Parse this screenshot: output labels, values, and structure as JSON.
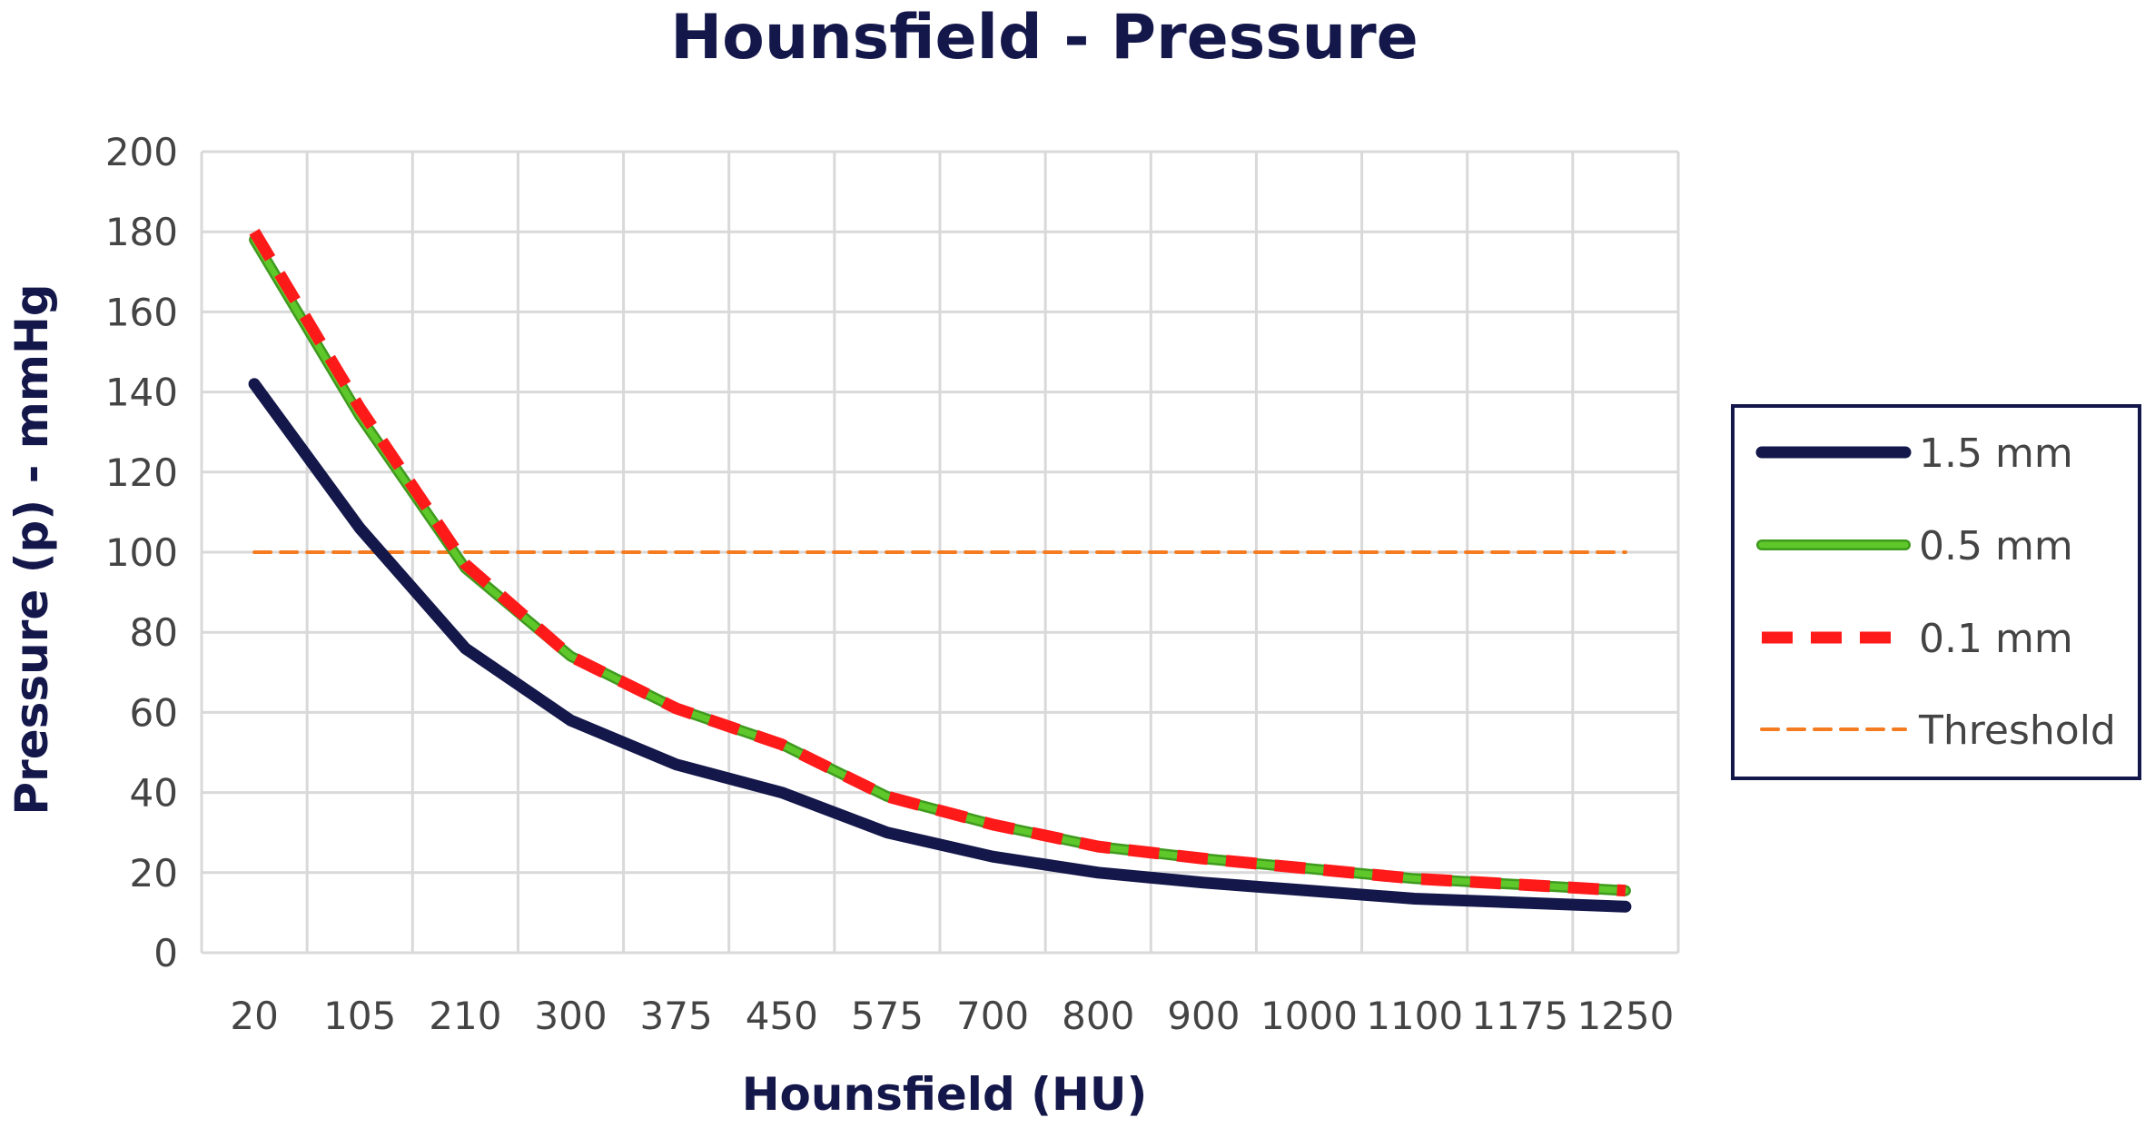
{
  "chart_data": {
    "type": "line",
    "title": "Hounsfield - Pressure",
    "xlabel": "Hounsfield (HU)",
    "ylabel": "Pressure (p) - mmHg",
    "categories": [
      "20",
      "105",
      "210",
      "300",
      "375",
      "450",
      "575",
      "700",
      "800",
      "900",
      "1000",
      "1100",
      "1175",
      "1250"
    ],
    "ylim": [
      0,
      200
    ],
    "yticks": [
      "0",
      "20",
      "40",
      "60",
      "80",
      "100",
      "120",
      "140",
      "160",
      "180",
      "200"
    ],
    "grid": true,
    "legend_position": "right",
    "series": [
      {
        "name": "1.5 mm",
        "color": "#14174a",
        "style": "solid-thick",
        "values": [
          142,
          106,
          76,
          58,
          47,
          40,
          30,
          24,
          20,
          17.5,
          15.5,
          13.5,
          12.5,
          11.5
        ]
      },
      {
        "name": "0.5 mm",
        "color": "#5ec72a",
        "style": "solid-outlined",
        "values": [
          178,
          134,
          96,
          74,
          61,
          52,
          39,
          32,
          26.5,
          23.5,
          21,
          18.5,
          17,
          15.5
        ]
      },
      {
        "name": "0.1 mm",
        "color": "#ff1a1a",
        "style": "dashed-thick",
        "values": [
          180,
          136,
          97,
          74,
          61,
          52,
          39,
          32,
          26.5,
          23.5,
          21,
          18.5,
          17,
          15.5
        ]
      },
      {
        "name": "Threshold",
        "color": "#f47b20",
        "style": "dashed-thin",
        "values": [
          100,
          100,
          100,
          100,
          100,
          100,
          100,
          100,
          100,
          100,
          100,
          100,
          100,
          100
        ]
      }
    ]
  }
}
